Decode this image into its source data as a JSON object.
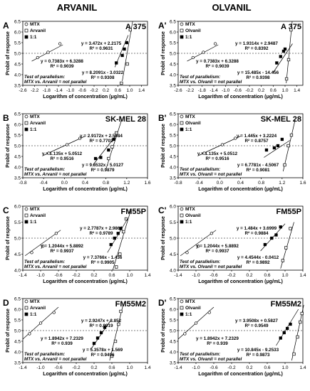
{
  "columns": [
    "ARVANIL",
    "OLVANIL"
  ],
  "common": {
    "ylabel": "Probit of response",
    "xlabel": "Logarithm of concentration (μg/mL)",
    "legend_mtx": "MTX",
    "legend_11": "1:1"
  },
  "chart_data": [
    {
      "type": "scatter",
      "panel": "A",
      "cell_line": "A 375",
      "xlim": [
        -2.6,
        1.6
      ],
      "ylim": [
        3.5,
        6.5
      ],
      "xticks": [
        "-2.6",
        "-2.2",
        "-1.8",
        "-1.4",
        "-1.0",
        "-0.6",
        "-0.2",
        "0.2",
        "0.6",
        "1.0",
        "1.4"
      ],
      "yticks": [
        "3.5",
        "4.0",
        "4.5",
        "5.0",
        "5.5",
        "6.0",
        "6.5"
      ],
      "legend": [
        "MTX",
        "Arvanil",
        "1:1"
      ],
      "parallel": [
        "Test of parallelism:",
        "MTX vs. Arvanil = not parallel"
      ],
      "series": [
        {
          "name": "MTX",
          "marker": "open-circle",
          "points": [
            [
              -2.1,
              4.8
            ],
            [
              -1.75,
              5.05
            ],
            [
              -1.35,
              5.45
            ]
          ],
          "fit": [
            [
              -2.3,
              4.63
            ],
            [
              -1.25,
              5.4
            ]
          ],
          "eq": "y = 0.7383x + 6.3288",
          "r2": "R² = 0.9039"
        },
        {
          "name": "Arvanil",
          "marker": "open-square",
          "points": [
            [
              0.72,
              3.6
            ],
            [
              0.92,
              4.5
            ],
            [
              1.02,
              6.1
            ]
          ],
          "fit": [
            [
              0.75,
              3.7
            ],
            [
              1.1,
              6.5
            ]
          ],
          "eq": "y = 8.2091x - 3.0322",
          "r2": "R² = 0.9308"
        },
        {
          "name": "1:1",
          "marker": "filled-square",
          "points": [
            [
              0.55,
              4.55
            ],
            [
              0.75,
              4.9
            ],
            [
              0.82,
              5.2
            ],
            [
              0.9,
              5.5
            ]
          ],
          "fit": [
            [
              0.5,
              4.35
            ],
            [
              0.95,
              5.85
            ]
          ],
          "eq": "y = 3.472x + 2.2175",
          "r2": "R² = 0.9631"
        }
      ]
    },
    {
      "type": "scatter",
      "panel": "A'",
      "cell_line": "A 375",
      "xlim": [
        -2.6,
        1.6
      ],
      "ylim": [
        3.5,
        6.5
      ],
      "xticks": [
        "-2.6",
        "-2.2",
        "-1.8",
        "-1.4",
        "-1.0",
        "-0.6",
        "-0.2",
        "0.2",
        "0.6",
        "1.0",
        "1.4"
      ],
      "yticks": [
        "3.5",
        "4.0",
        "4.5",
        "5.0",
        "5.5",
        "6.0",
        "6.5"
      ],
      "legend": [
        "MTX",
        "Olvanil",
        "1:1"
      ],
      "parallel": [
        "Test of parallelism:",
        "MTX vs. Olvanil = not parallel"
      ],
      "series": [
        {
          "name": "MTX",
          "marker": "open-circle",
          "points": [
            [
              -2.1,
              4.8
            ],
            [
              -1.75,
              5.05
            ],
            [
              -1.35,
              5.45
            ]
          ],
          "fit": [
            [
              -2.3,
              4.63
            ],
            [
              -1.25,
              5.4
            ]
          ],
          "eq": "y = 0.7383x + 6.3288",
          "r2": "R² = 0.9039"
        },
        {
          "name": "Olvanil",
          "marker": "open-square",
          "points": [
            [
              1.05,
              3.8
            ],
            [
              1.12,
              4.7
            ],
            [
              1.2,
              6.1
            ]
          ],
          "fit": [
            [
              1.04,
              3.6
            ],
            [
              1.24,
              6.5
            ]
          ],
          "eq": "y = 15.485x - 14.456",
          "r2": "R² = 0.9398"
        },
        {
          "name": "1:1",
          "marker": "filled-square",
          "points": [
            [
              0.72,
              4.55
            ],
            [
              0.85,
              4.85
            ],
            [
              0.95,
              5.1
            ],
            [
              1.0,
              5.2
            ]
          ],
          "fit": [
            [
              0.6,
              4.1
            ],
            [
              1.25,
              5.45
            ]
          ],
          "eq": "y = 1.9314x + 2.9487",
          "r2": "R² = 0.8392"
        }
      ]
    },
    {
      "type": "scatter",
      "panel": "B",
      "cell_line": "SK-MEL 28",
      "xlim": [
        -0.8,
        1.6
      ],
      "ylim": [
        3.5,
        6.5
      ],
      "xticks": [
        "-0.8",
        "-0.4",
        "0.0",
        "0.4",
        "0.8",
        "1.2",
        "1.6"
      ],
      "yticks": [
        "3.5",
        "4.0",
        "4.5",
        "5.0",
        "5.5",
        "6.0",
        "6.5"
      ],
      "legend": [
        "MTX",
        "Arvanil",
        "1:1"
      ],
      "parallel": [
        "Test of parallelism:",
        "MTX vs. Arvanil = not parallel"
      ],
      "series": [
        {
          "name": "MTX",
          "marker": "open-circle",
          "points": [
            [
              -0.3,
              4.65
            ],
            [
              0.05,
              5.05
            ],
            [
              0.3,
              5.35
            ]
          ],
          "fit": [
            [
              -0.4,
              4.55
            ],
            [
              0.4,
              5.45
            ]
          ],
          "eq": "y = 1.135x + 5.0512",
          "r2": "R² = 0.9516"
        },
        {
          "name": "Arvanil",
          "marker": "open-square",
          "points": [
            [
              0.85,
              4.4
            ],
            [
              0.92,
              4.95
            ],
            [
              1.0,
              5.6
            ]
          ],
          "fit": [
            [
              0.8,
              3.9
            ],
            [
              1.1,
              6.2
            ]
          ],
          "eq": "y = 9.8532x - 5.0127",
          "r2": "R² = 0.9879"
        },
        {
          "name": "1:1",
          "marker": "filled-square",
          "points": [
            [
              0.6,
              4.4
            ],
            [
              0.7,
              4.45
            ],
            [
              0.85,
              4.8
            ],
            [
              0.95,
              5.3
            ]
          ],
          "fit": [
            [
              0.55,
              4.1
            ],
            [
              1.0,
              5.5
            ]
          ],
          "eq": "y = 2.9172x + 2.5084",
          "r2": "R² = 0.7703"
        }
      ]
    },
    {
      "type": "scatter",
      "panel": "B'",
      "cell_line": "SK-MEL 28",
      "xlim": [
        -0.8,
        1.6
      ],
      "ylim": [
        3.5,
        6.5
      ],
      "xticks": [
        "-0.8",
        "-0.4",
        "0.0",
        "0.4",
        "0.8",
        "1.2",
        "1.6"
      ],
      "yticks": [
        "3.5",
        "4.0",
        "4.5",
        "5.0",
        "5.5",
        "6.0",
        "6.5"
      ],
      "legend": [
        "MTX",
        "Olvanil",
        "1:1"
      ],
      "parallel": [
        "Test of parallelism:",
        "MTX vs. Olvanil = not parallel"
      ],
      "series": [
        {
          "name": "MTX",
          "marker": "open-circle",
          "points": [
            [
              -0.3,
              4.65
            ],
            [
              0.05,
              5.05
            ],
            [
              0.3,
              5.35
            ]
          ],
          "fit": [
            [
              -0.4,
              4.55
            ],
            [
              0.4,
              5.45
            ]
          ],
          "eq": "y = 1.135x + 5.0512",
          "r2": "R² = 0.9516"
        },
        {
          "name": "Olvanil",
          "marker": "open-square",
          "points": [
            [
              1.25,
              4.1
            ],
            [
              1.32,
              5.0
            ],
            [
              1.38,
              5.5
            ]
          ],
          "fit": [
            [
              1.22,
              3.8
            ],
            [
              1.45,
              6.2
            ]
          ],
          "eq": "y = 6.7781x - 4.5067",
          "r2": "R² = 0.9081"
        },
        {
          "name": "1:1",
          "marker": "filled-square",
          "points": [
            [
              0.9,
              4.8
            ],
            [
              1.05,
              4.9
            ],
            [
              1.12,
              5.0
            ],
            [
              1.2,
              5.3
            ]
          ],
          "fit": [
            [
              0.85,
              4.45
            ],
            [
              1.35,
              5.25
            ]
          ],
          "eq": "y = 1.445x + 3.2224",
          "r2": "R² = 0.8757"
        }
      ]
    },
    {
      "type": "scatter",
      "panel": "C",
      "cell_line": "FM55P",
      "xlim": [
        -1.4,
        1.4
      ],
      "ylim": [
        4.0,
        6.0
      ],
      "xticks": [
        "-1.4",
        "-1.0",
        "-0.6",
        "-0.2",
        "0.2",
        "0.6",
        "1.0",
        "1.4"
      ],
      "yticks": [
        "4.0",
        "4.5",
        "5.0",
        "5.5",
        "6.0"
      ],
      "legend": [
        "MTX",
        "Arvanil",
        "1:1"
      ],
      "parallel": [
        "Test of parallelism:",
        "MTX vs. Arvanil = not parallel"
      ],
      "series": [
        {
          "name": "MTX",
          "marker": "open-circle",
          "points": [
            [
              -1.2,
              4.55
            ],
            [
              -0.95,
              4.75
            ],
            [
              -0.65,
              5.15
            ]
          ],
          "fit": [
            [
              -1.35,
              4.45
            ],
            [
              -0.55,
              5.25
            ]
          ],
          "eq": "y = 1.2044x + 5.8892",
          "r2": "R² = 0.9937"
        },
        {
          "name": "Arvanil",
          "marker": "open-square",
          "points": [
            [
              0.7,
              4.1
            ],
            [
              0.78,
              4.5
            ],
            [
              0.86,
              5.2
            ],
            [
              0.92,
              5.6
            ]
          ],
          "fit": [
            [
              0.62,
              4.0
            ],
            [
              1.02,
              5.85
            ]
          ],
          "eq": "y = 7.3766x - 1.436",
          "r2": "R² = 0.9905"
        },
        {
          "name": "1:1",
          "marker": "filled-square",
          "points": [
            [
              0.58,
              4.8
            ],
            [
              0.66,
              5.0
            ],
            [
              0.74,
              5.15
            ],
            [
              0.8,
              5.3
            ]
          ],
          "fit": [
            [
              0.5,
              4.55
            ],
            [
              0.95,
              5.6
            ]
          ],
          "eq": "y = 2.7787x + 2.9862",
          "r2": "R² = 0.9789"
        }
      ]
    },
    {
      "type": "scatter",
      "panel": "C'",
      "cell_line": "FM55P",
      "xlim": [
        -1.4,
        1.4
      ],
      "ylim": [
        4.0,
        6.0
      ],
      "xticks": [
        "-1.4",
        "-1.0",
        "-0.6",
        "-0.2",
        "0.2",
        "0.6",
        "1.0",
        "1.4"
      ],
      "yticks": [
        "4.0",
        "4.5",
        "5.0",
        "5.5",
        "6.0"
      ],
      "legend": [
        "MTX",
        "Olvanil",
        "1:1"
      ],
      "parallel": [
        "Test of parallelism:",
        "MTX vs. Olvanil = not parallel"
      ],
      "series": [
        {
          "name": "MTX",
          "marker": "open-circle",
          "points": [
            [
              -1.2,
              4.55
            ],
            [
              -0.95,
              4.75
            ],
            [
              -0.65,
              5.15
            ]
          ],
          "fit": [
            [
              -1.35,
              4.45
            ],
            [
              -0.55,
              5.25
            ]
          ],
          "eq": "y = 1.2044x + 5.8892",
          "r2": "R² = 0.9937"
        },
        {
          "name": "Olvanil",
          "marker": "open-square",
          "points": [
            [
              0.95,
              4.3
            ],
            [
              1.02,
              4.7
            ],
            [
              1.12,
              5.3
            ]
          ],
          "fit": [
            [
              0.9,
              4.05
            ],
            [
              1.2,
              5.5
            ]
          ],
          "eq": "y = 4.4544x - 0.0412",
          "r2": "R² = 0.9892"
        },
        {
          "name": "1:1",
          "marker": "filled-square",
          "points": [
            [
              0.55,
              4.8
            ],
            [
              0.7,
              5.0
            ],
            [
              0.8,
              5.1
            ],
            [
              0.9,
              5.35
            ]
          ],
          "fit": [
            [
              0.45,
              4.6
            ],
            [
              1.0,
              5.45
            ]
          ],
          "eq": "y = 1.484x + 3.6999",
          "r2": "R² = 0.9884"
        }
      ]
    },
    {
      "type": "scatter",
      "panel": "D",
      "cell_line": "FM55M2",
      "xlim": [
        -1.4,
        1.4
      ],
      "ylim": [
        3.5,
        6.5
      ],
      "xticks": [
        "-1.4",
        "-1.0",
        "-0.6",
        "-0.2",
        "0.2",
        "0.6",
        "1.0",
        "1.4"
      ],
      "yticks": [
        "3.5",
        "4.0",
        "4.5",
        "5.0",
        "5.5",
        "6.0",
        "6.5"
      ],
      "legend": [
        "MTX",
        "Arvanil",
        "1:1"
      ],
      "parallel": [
        "Test of parallelism:",
        "MTX vs. Arvanil = not parallel"
      ],
      "series": [
        {
          "name": "MTX",
          "marker": "open-circle",
          "points": [
            [
              -1.25,
              4.85
            ],
            [
              -1.0,
              5.35
            ],
            [
              -0.7,
              5.85
            ]
          ],
          "fit": [
            [
              -1.4,
              4.6
            ],
            [
              -0.6,
              6.1
            ]
          ],
          "eq": "y = 1.8942x + 7.2329",
          "r2": "R² = 0.939"
        },
        {
          "name": "Arvanil",
          "marker": "open-square",
          "points": [
            [
              0.6,
              3.8
            ],
            [
              0.68,
              4.5
            ],
            [
              0.75,
              5.3
            ],
            [
              0.8,
              5.9
            ]
          ],
          "fit": [
            [
              0.55,
              3.6
            ],
            [
              0.85,
              6.2
            ]
          ],
          "eq": "y = 5.3578x + 1.569",
          "r2": "R² = 0.9496"
        },
        {
          "name": "1:1",
          "marker": "filled-square",
          "points": [
            [
              0.2,
              4.4
            ],
            [
              0.28,
              4.65
            ],
            [
              0.36,
              4.9
            ],
            [
              0.44,
              5.15
            ]
          ],
          "fit": [
            [
              0.12,
              4.1
            ],
            [
              0.58,
              5.5
            ]
          ],
          "eq": "y = 2.9247x + 3.852",
          "r2": "R² = 0.9919"
        }
      ]
    },
    {
      "type": "scatter",
      "panel": "D'",
      "cell_line": "FM55M2",
      "xlim": [
        -1.4,
        1.4
      ],
      "ylim": [
        3.5,
        6.5
      ],
      "xticks": [
        "-1.4",
        "-1.0",
        "-0.6",
        "-0.2",
        "0.2",
        "0.6",
        "1.0",
        "1.4"
      ],
      "yticks": [
        "3.5",
        "4.0",
        "4.5",
        "5.0",
        "5.5",
        "6.0",
        "6.5"
      ],
      "legend": [
        "MTX",
        "Olvanil",
        "1:1"
      ],
      "parallel": [
        "Test of parallelism:",
        "MTX vs. Olvanil = not parallel"
      ],
      "series": [
        {
          "name": "MTX",
          "marker": "open-circle",
          "points": [
            [
              -1.25,
              4.85
            ],
            [
              -1.0,
              5.35
            ],
            [
              -0.7,
              5.85
            ]
          ],
          "fit": [
            [
              -1.4,
              4.6
            ],
            [
              -0.6,
              6.1
            ]
          ],
          "eq": "y = 1.8942x + 7.2329",
          "r2": "R² = 0.939"
        },
        {
          "name": "Olvanil",
          "marker": "open-square",
          "points": [
            [
              1.2,
              3.9
            ],
            [
              1.28,
              4.7
            ],
            [
              1.34,
              5.4
            ],
            [
              1.38,
              5.8
            ]
          ],
          "fit": [
            [
              1.15,
              3.6
            ],
            [
              1.42,
              6.2
            ]
          ],
          "eq": "y = 10.845x - 9.2533",
          "r2": "R² = 0.9873"
        },
        {
          "name": "1:1",
          "marker": "filled-square",
          "points": [
            [
              0.9,
              4.65
            ],
            [
              0.98,
              4.9
            ],
            [
              1.05,
              5.1
            ],
            [
              1.12,
              5.3
            ]
          ],
          "fit": [
            [
              0.8,
              4.3
            ],
            [
              1.3,
              6.0
            ]
          ],
          "eq": "y = 3.9508x + 0.5827",
          "r2": "R² = 0.9549"
        }
      ]
    }
  ]
}
